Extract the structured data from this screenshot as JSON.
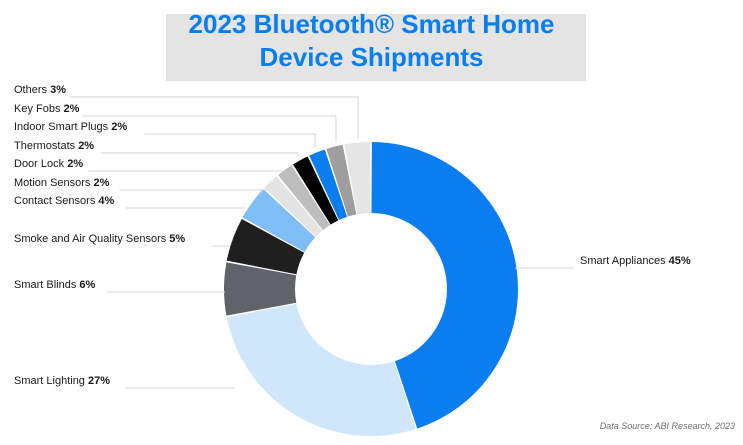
{
  "title": {
    "line1": "2023 Bluetooth® Smart Home",
    "line2": "Device Shipments"
  },
  "source": "Data Source: ABI Research, 2023",
  "chart_data": {
    "type": "pie",
    "style": "donut",
    "title": "2023 Bluetooth® Smart Home Device Shipments",
    "unit": "%",
    "slices": [
      {
        "label": "Smart Appliances",
        "value": 45,
        "display": "45%",
        "color": "#0a7ef0"
      },
      {
        "label": "Smart Lighting",
        "value": 27,
        "display": "27%",
        "color": "#cfe6fb"
      },
      {
        "label": "Smart Blinds",
        "value": 6,
        "display": "6%",
        "color": "#606369"
      },
      {
        "label": "Smoke and Air Quality Sensors",
        "value": 5,
        "display": "5%",
        "color": "#1f1f1f"
      },
      {
        "label": "Contact Sensors",
        "value": 4,
        "display": "4%",
        "color": "#7fbdf7"
      },
      {
        "label": "Motion Sensors",
        "value": 2,
        "display": "2%",
        "color": "#e3e3e3"
      },
      {
        "label": "Door Lock",
        "value": 2,
        "display": "2%",
        "color": "#bdbdbd"
      },
      {
        "label": "Thermostats",
        "value": 2,
        "display": "2%",
        "color": "#000000"
      },
      {
        "label": "Indoor Smart Plugs",
        "value": 2,
        "display": "2%",
        "color": "#0a7ef0"
      },
      {
        "label": "Key Fobs",
        "value": 2,
        "display": "2%",
        "color": "#9e9e9e"
      },
      {
        "label": "Others",
        "value": 3,
        "display": "3%",
        "color": "#e6e6e6"
      }
    ]
  }
}
